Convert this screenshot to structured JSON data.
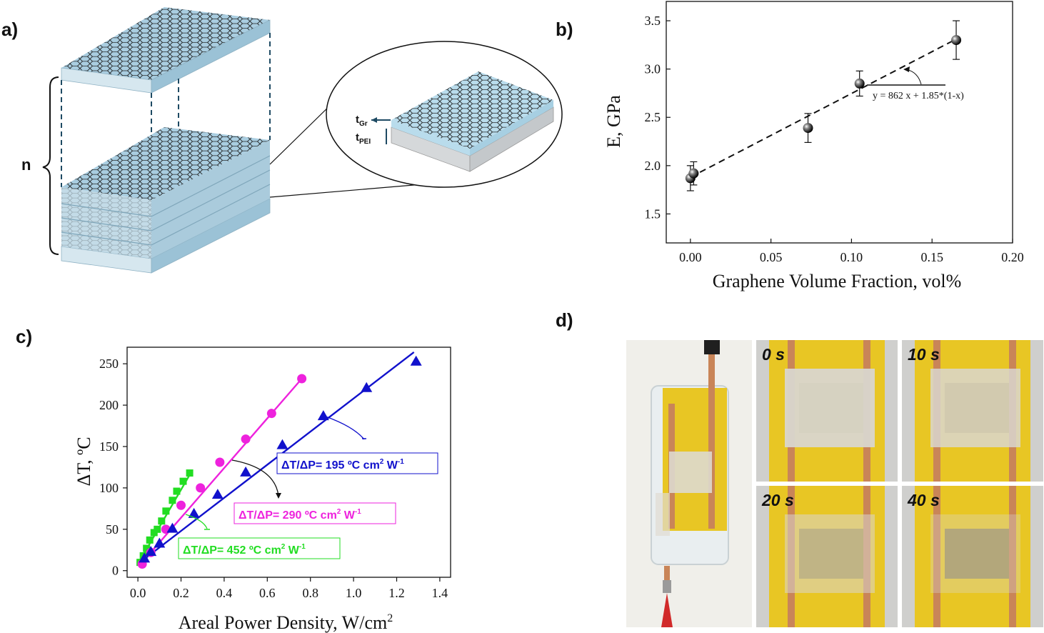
{
  "panels": {
    "a": "a)",
    "b": "b)",
    "c": "c)",
    "d": "d)"
  },
  "panel_a": {
    "n_label": "n",
    "t_gr_base": "t",
    "t_gr_sub": "Gr",
    "t_pei_base": "t",
    "t_pei_sub": "PEI",
    "colors": {
      "layer_top": "#a9cde0",
      "layer_side": "#c7dde8",
      "hex_line": "#1c1c1c",
      "dash": "#1e4a63"
    }
  },
  "chart_data": [
    {
      "id": "b",
      "type": "scatter",
      "xlabel": "Graphene Volume Fraction, vol%",
      "ylabel": "E, GPa",
      "xlim": [
        -0.015,
        0.2
      ],
      "ylim": [
        1.2,
        3.7
      ],
      "xticks": [
        "0.00",
        "0.05",
        "0.10",
        "0.15",
        "0.20"
      ],
      "xtick_values": [
        0,
        0.05,
        0.1,
        0.15,
        0.2
      ],
      "yticks": [
        "1.5",
        "2.0",
        "2.5",
        "3.0",
        "3.5"
      ],
      "ytick_values": [
        1.5,
        2.0,
        2.5,
        3.0,
        3.5
      ],
      "points": [
        {
          "x": 0.0,
          "y": 1.87,
          "err": 0.13
        },
        {
          "x": 0.002,
          "y": 1.92,
          "err": 0.12
        },
        {
          "x": 0.073,
          "y": 2.39,
          "err": 0.15
        },
        {
          "x": 0.105,
          "y": 2.85,
          "err": 0.13
        },
        {
          "x": 0.165,
          "y": 3.3,
          "err": 0.2
        }
      ],
      "fit": {
        "x": [
          0.0,
          0.165
        ],
        "y": [
          1.88,
          3.31
        ],
        "style": "dashed"
      },
      "annotation": "y = 862 x + 1.85*(1-x)"
    },
    {
      "id": "c",
      "type": "scatter",
      "xlabel_base": "Areal Power Density, W/cm",
      "xlabel_sup": "2",
      "ylabel": "ΔT, ºC",
      "xlim": [
        -0.05,
        1.45
      ],
      "ylim": [
        -8,
        270
      ],
      "xticks": [
        "0.0",
        "0.2",
        "0.4",
        "0.6",
        "0.8",
        "1.0",
        "1.2",
        "1.4"
      ],
      "xtick_values": [
        0,
        0.2,
        0.4,
        0.6,
        0.8,
        1.0,
        1.2,
        1.4
      ],
      "yticks": [
        "0",
        "50",
        "100",
        "150",
        "200",
        "250"
      ],
      "ytick_values": [
        0,
        50,
        100,
        150,
        200,
        250
      ],
      "series": [
        {
          "color": "#22dd22",
          "marker": "square",
          "x": [
            0.01,
            0.025,
            0.04,
            0.055,
            0.075,
            0.09,
            0.11,
            0.13,
            0.16,
            0.18,
            0.21,
            0.24
          ],
          "y": [
            10,
            18,
            27,
            37,
            46,
            50,
            60,
            72,
            85,
            96,
            108,
            118
          ],
          "fit": {
            "x": [
              0.0,
              0.245
            ],
            "y": [
              8,
              118
            ]
          },
          "label_base": "ΔT/ΔP= 452 ºC cm",
          "label_sup1": "2",
          "label_mid": " W",
          "label_sup2": "-1"
        },
        {
          "color": "#ee22dd",
          "marker": "circle",
          "x": [
            0.02,
            0.06,
            0.13,
            0.2,
            0.29,
            0.38,
            0.5,
            0.62,
            0.76
          ],
          "y": [
            8,
            22,
            50,
            79,
            100,
            131,
            159,
            190,
            232
          ],
          "fit": {
            "x": [
              0.02,
              0.76
            ],
            "y": [
              10,
              232
            ]
          },
          "label_base": "ΔT/ΔP= 290 ºC cm",
          "label_sup1": "2",
          "label_mid": " W",
          "label_sup2": "-1"
        },
        {
          "color": "#1111cc",
          "marker": "triangle",
          "x": [
            0.03,
            0.06,
            0.1,
            0.16,
            0.26,
            0.37,
            0.5,
            0.67,
            0.86,
            1.06,
            1.29
          ],
          "y": [
            15,
            23,
            33,
            51,
            69,
            92,
            119,
            152,
            187,
            221,
            253
          ],
          "fit": {
            "x": [
              0.02,
              1.28
            ],
            "y": [
              12,
              264
            ]
          },
          "label_base": "ΔT/ΔP= 195 ºC cm",
          "label_sup1": "2",
          "label_mid": " W",
          "label_sup2": "-1"
        }
      ]
    }
  ],
  "panel_d": {
    "time_labels": [
      "0 s",
      "10 s",
      "20 s",
      "40 s"
    ],
    "colors": {
      "kapton": "#e8c624",
      "copper": "#c98558",
      "frost": "#d9d6cf",
      "bg": "#cfcfcd"
    }
  }
}
